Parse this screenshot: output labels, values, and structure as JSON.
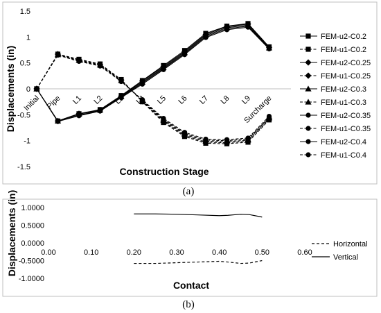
{
  "chart_data": [
    {
      "type": "line",
      "panel_label": "a",
      "xlabel": "Construction Stage",
      "ylabel": "Displacements (in)",
      "categories": [
        "Initial",
        "Pipe",
        "L1",
        "L2",
        "L3",
        "L4",
        "L5",
        "L6",
        "L7",
        "L8",
        "L9",
        "Surcharge"
      ],
      "ylim": [
        -1.5,
        1.5
      ],
      "yticks": [
        "1.5",
        "1",
        "0.5",
        "0",
        "-0.5",
        "-1",
        "-1.5"
      ],
      "grid": false,
      "legend_position": "right",
      "series": [
        {
          "name": "FEM-u2-C0.2",
          "dashed": false,
          "marker": "square",
          "values": [
            0,
            -0.62,
            -0.48,
            -0.4,
            -0.13,
            0.16,
            0.45,
            0.74,
            1.07,
            1.21,
            1.26,
            0.81
          ]
        },
        {
          "name": "FEM-u1-C0.2",
          "dashed": true,
          "marker": "square",
          "values": [
            0,
            0.67,
            0.57,
            0.48,
            0.18,
            -0.25,
            -0.65,
            -0.92,
            -1.05,
            -1.06,
            -1.03,
            -0.6
          ]
        },
        {
          "name": "FEM-u2-C0.25",
          "dashed": false,
          "marker": "diamond",
          "values": [
            0,
            -0.62,
            -0.48,
            -0.41,
            -0.14,
            0.15,
            0.43,
            0.72,
            1.05,
            1.2,
            1.25,
            0.8
          ]
        },
        {
          "name": "FEM-u1-C0.25",
          "dashed": true,
          "marker": "diamond",
          "values": [
            0,
            0.67,
            0.56,
            0.47,
            0.17,
            -0.24,
            -0.63,
            -0.9,
            -1.03,
            -1.04,
            -1.01,
            -0.58
          ]
        },
        {
          "name": "FEM-u2-C0.3",
          "dashed": false,
          "marker": "triangle",
          "values": [
            0,
            -0.62,
            -0.49,
            -0.41,
            -0.15,
            0.13,
            0.41,
            0.7,
            1.03,
            1.18,
            1.23,
            0.79
          ]
        },
        {
          "name": "FEM-u1-C0.3",
          "dashed": true,
          "marker": "triangle",
          "values": [
            0,
            0.66,
            0.55,
            0.46,
            0.16,
            -0.23,
            -0.61,
            -0.88,
            -1.01,
            -1.02,
            -0.99,
            -0.56
          ]
        },
        {
          "name": "FEM-u2-C0.35",
          "dashed": false,
          "marker": "circle",
          "values": [
            0,
            -0.63,
            -0.51,
            -0.42,
            -0.16,
            0.11,
            0.39,
            0.68,
            1.01,
            1.16,
            1.21,
            0.78
          ]
        },
        {
          "name": "FEM-u1-C0.35",
          "dashed": true,
          "marker": "circle",
          "values": [
            0,
            0.66,
            0.54,
            0.45,
            0.15,
            -0.22,
            -0.59,
            -0.86,
            -0.99,
            -1.0,
            -0.97,
            -0.55
          ]
        },
        {
          "name": "FEM-u2-C0.4",
          "dashed": false,
          "marker": "circle",
          "values": [
            0,
            -0.63,
            -0.52,
            -0.43,
            -0.17,
            0.09,
            0.37,
            0.66,
            0.99,
            1.14,
            1.19,
            0.77
          ]
        },
        {
          "name": "FEM-u1-C0.4",
          "dashed": true,
          "marker": "circle",
          "values": [
            0,
            0.65,
            0.53,
            0.44,
            0.14,
            -0.21,
            -0.57,
            -0.84,
            -0.97,
            -0.98,
            -0.95,
            -0.53
          ]
        }
      ]
    },
    {
      "type": "line",
      "panel_label": "b",
      "xlabel": "Contact",
      "ylabel": "Displacements (in)",
      "xlim": [
        0.0,
        0.6
      ],
      "ylim": [
        -1.0,
        1.0
      ],
      "xticks": [
        "0.00",
        "0.10",
        "0.20",
        "0.30",
        "0.40",
        "0.50",
        "0.60"
      ],
      "yticks": [
        "1.0000",
        "0.5000",
        "0.0000",
        "-0.5000",
        "-1.0000"
      ],
      "grid": false,
      "legend_position": "right",
      "series": [
        {
          "name": "Horizontal",
          "dashed": true,
          "x": [
            0.2,
            0.25,
            0.3,
            0.35,
            0.4,
            0.42,
            0.45,
            0.47,
            0.5
          ],
          "y": [
            -0.58,
            -0.58,
            -0.56,
            -0.54,
            -0.52,
            -0.54,
            -0.58,
            -0.57,
            -0.5
          ]
        },
        {
          "name": "Vertical",
          "dashed": false,
          "x": [
            0.2,
            0.25,
            0.3,
            0.35,
            0.4,
            0.42,
            0.45,
            0.47,
            0.5
          ],
          "y": [
            0.82,
            0.82,
            0.81,
            0.79,
            0.77,
            0.78,
            0.81,
            0.8,
            0.73
          ]
        }
      ]
    }
  ]
}
